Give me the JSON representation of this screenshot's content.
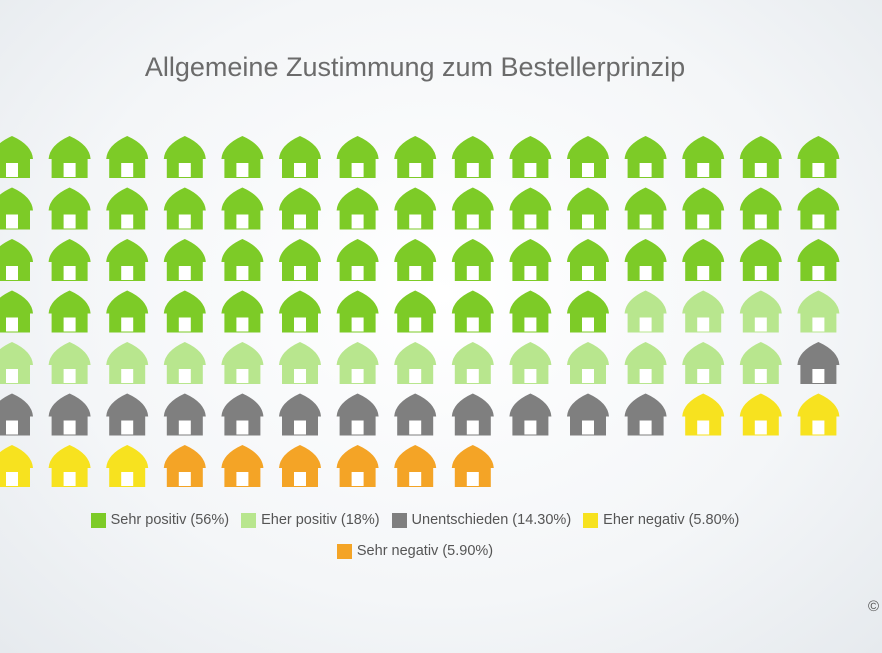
{
  "chart_data": {
    "type": "pictogram",
    "title": "Allgemeine Zustimmung zum Bestellerprinzip",
    "icon": "house-icon",
    "icons_per_row": 15,
    "series": [
      {
        "name": "Sehr positiv",
        "label": "Sehr positiv (56%)",
        "value": 56,
        "icons": 56,
        "color": "#7dcb27"
      },
      {
        "name": "Eher positiv",
        "label": "Eher positiv (18%)",
        "value": 18,
        "icons": 18,
        "color": "#b8e68e"
      },
      {
        "name": "Unentschieden",
        "label": "Unentschieden (14.30%)",
        "value": 14.3,
        "icons": 13,
        "color": "#7f7f7f"
      },
      {
        "name": "Eher negativ",
        "label": "Eher negativ (5.80%)",
        "value": 5.8,
        "icons": 6,
        "color": "#f7e21f"
      },
      {
        "name": "Sehr negativ",
        "label": "Sehr negativ (5.90%)",
        "value": 5.9,
        "icons": 6,
        "color": "#f4a426"
      }
    ],
    "legend_placement": "bottom"
  },
  "copyright": "©"
}
